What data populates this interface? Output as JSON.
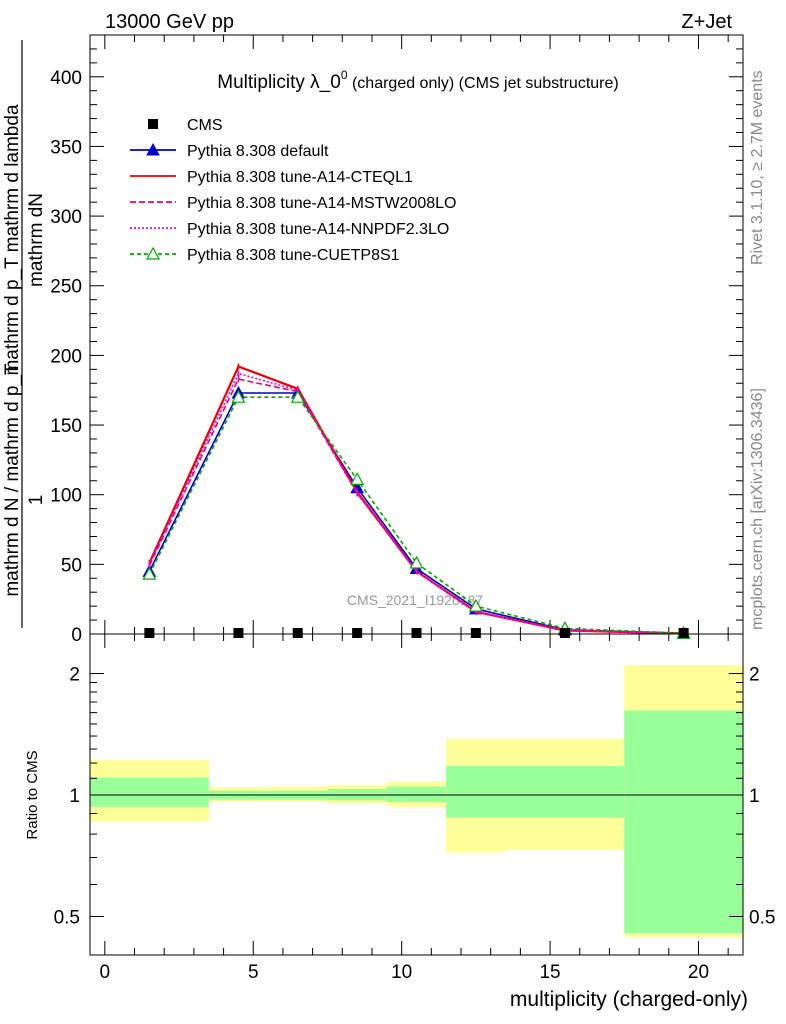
{
  "header": {
    "left": "13000 GeV pp",
    "right": "Z+Jet"
  },
  "side_labels": {
    "rivet": "Rivet 3.1.10, ≥ 2.7M events",
    "mcplots": "mcplots.cern.ch [arXiv:1306.3436]"
  },
  "watermark": "CMS_2021_I1920187",
  "chart_data": [
    {
      "type": "line",
      "title_main": "Multiplicity λ_0",
      "title_sup": "0",
      "title_sub": " (charged only) (CMS jet substructure)",
      "ylabel_top": "mathrm dN",
      "ylabel_bottom": "mathrm d p_T mathrm d lambda",
      "ylabel_top2": "1",
      "ylabel_bottom2": "mathrm d N / mathrm d p_T",
      "ylim": [
        0,
        430
      ],
      "yticks": [
        0,
        50,
        100,
        150,
        200,
        250,
        300,
        350,
        400
      ],
      "x": [
        1.5,
        4.5,
        6.5,
        8.5,
        10.5,
        12.5,
        15.5,
        19.5
      ],
      "data_series": {
        "name": "CMS",
        "values": [
          0,
          0,
          0,
          0,
          0,
          0,
          0,
          0
        ]
      },
      "series": [
        {
          "name": "Pythia 8.308 default",
          "color": "#0000cc",
          "dash": "",
          "marker": "triangle-filled",
          "values": [
            45,
            173,
            173,
            105,
            47,
            18,
            3,
            0.5
          ]
        },
        {
          "name": "Pythia 8.308 tune-A14-CTEQL1",
          "color": "#ee0000",
          "dash": "",
          "marker": "none",
          "values": [
            51,
            192,
            176,
            102,
            45,
            16,
            2.5,
            0.4
          ]
        },
        {
          "name": "Pythia 8.308 tune-A14-MSTW2008LO",
          "color": "#ee0077",
          "dash": "6,3",
          "marker": "none",
          "values": [
            49,
            183,
            174,
            101,
            45,
            16,
            2.5,
            0.4
          ]
        },
        {
          "name": "Pythia 8.308 tune-A14-NNPDF2.3LO",
          "color": "#ee00ee",
          "dash": "2,2",
          "marker": "none",
          "values": [
            50,
            187,
            175,
            101,
            45,
            16,
            2.5,
            0.4
          ]
        },
        {
          "name": "Pythia 8.308 tune-CUETP8S1",
          "color": "#00aa00",
          "dash": "4,3",
          "marker": "triangle-open",
          "values": [
            43,
            170,
            170,
            111,
            51,
            20,
            4,
            0.6
          ]
        }
      ]
    },
    {
      "type": "area",
      "ylabel": "Ratio to CMS",
      "xlabel": "multiplicity (charged-only)",
      "xlim": [
        -0.5,
        21.5
      ],
      "xticks": [
        0,
        5,
        10,
        15,
        20
      ],
      "ylim": [
        0.445,
        2.3
      ],
      "yticks": [
        0.5,
        1,
        2
      ],
      "ytick_labels": [
        "0.5",
        "1",
        "2"
      ],
      "bands": [
        {
          "x0": -0.5,
          "x1": 3.5,
          "stat": [
            0.935,
            1.105
          ],
          "total": [
            0.86,
            1.22
          ]
        },
        {
          "x0": 3.5,
          "x1": 5.5,
          "stat": [
            0.975,
            1.025
          ],
          "total": [
            0.965,
            1.045
          ]
        },
        {
          "x0": 5.5,
          "x1": 7.5,
          "stat": [
            0.975,
            1.025
          ],
          "total": [
            0.965,
            1.05
          ]
        },
        {
          "x0": 7.5,
          "x1": 9.5,
          "stat": [
            0.97,
            1.035
          ],
          "total": [
            0.955,
            1.06
          ]
        },
        {
          "x0": 9.5,
          "x1": 11.5,
          "stat": [
            0.96,
            1.05
          ],
          "total": [
            0.935,
            1.08
          ]
        },
        {
          "x0": 11.5,
          "x1": 13.5,
          "stat": [
            0.88,
            1.18
          ],
          "total": [
            0.72,
            1.38
          ]
        },
        {
          "x0": 13.5,
          "x1": 17.5,
          "stat": [
            0.88,
            1.18
          ],
          "total": [
            0.73,
            1.38
          ]
        },
        {
          "x0": 17.5,
          "x1": 21.5,
          "stat": [
            0.455,
            1.62
          ],
          "total": [
            0.445,
            2.1
          ]
        }
      ],
      "band_colors": {
        "stat": "#99ff99",
        "total": "#ffff99"
      }
    }
  ]
}
